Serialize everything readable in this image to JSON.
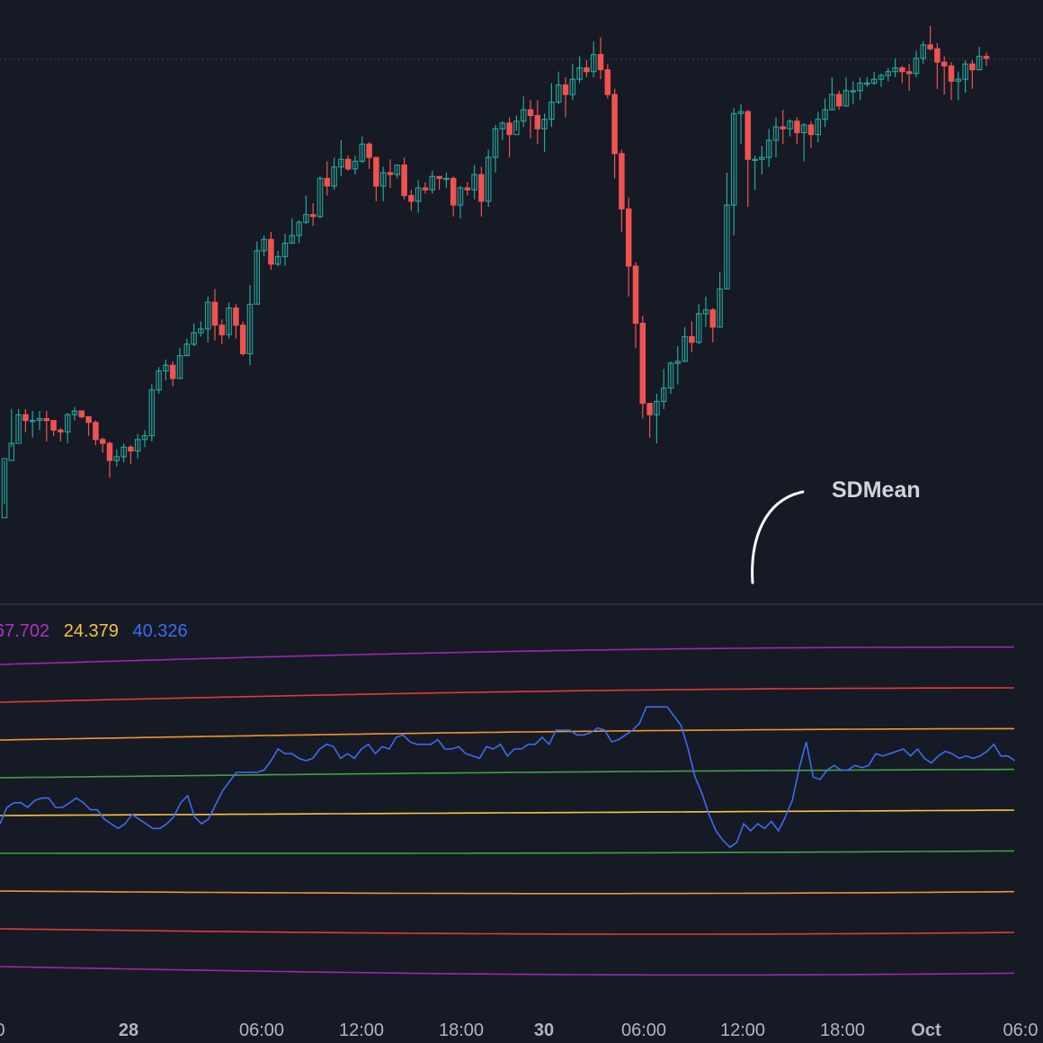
{
  "annotation": {
    "text": "SDMean"
  },
  "indicator_values": [
    {
      "text": "67.702",
      "color": "#b032c4"
    },
    {
      "text": "24.379",
      "color": "#f5c542"
    },
    {
      "text": "40.326",
      "color": "#3d6bf0"
    }
  ],
  "time_axis": {
    "labels": [
      "0",
      "28",
      "06:00",
      "12:00",
      "18:00",
      "30",
      "06:00",
      "12:00",
      "18:00",
      "Oct",
      "06:0"
    ],
    "bold": [
      false,
      true,
      false,
      false,
      false,
      true,
      false,
      false,
      false,
      true,
      false
    ]
  },
  "colors": {
    "background": "#161a25",
    "up": "#26a69a",
    "down": "#ef5350",
    "axis_text": "#b2b5be",
    "divider": "#2a2e39",
    "mean_line": "#3d6bf0",
    "band_1sd": "#43a047",
    "band_mid": "#f5c542",
    "band_2sd": "#f0962a",
    "band_3sd": "#e53935",
    "band_4sd": "#9c27b0"
  },
  "chart_data": [
    {
      "type": "candlestick",
      "title": "",
      "candles_ohlc": [
        [
          2,
          33,
          32,
          9
        ],
        [
          32,
          41,
          59,
          39
        ],
        [
          41,
          56,
          59,
          42
        ],
        [
          56,
          53,
          59,
          47
        ],
        [
          53,
          53,
          58,
          44
        ],
        [
          53,
          54,
          58,
          48
        ],
        [
          54,
          53,
          58,
          42
        ],
        [
          53,
          48,
          52,
          45
        ],
        [
          48,
          47,
          49,
          42
        ],
        [
          47,
          56,
          57,
          41
        ],
        [
          56,
          58,
          60,
          53
        ],
        [
          58,
          55,
          58,
          54
        ],
        [
          55,
          52,
          55,
          45
        ],
        [
          52,
          43,
          53,
          40
        ],
        [
          43,
          41,
          44,
          36
        ],
        [
          41,
          32,
          42,
          23
        ],
        [
          32,
          34,
          38,
          29
        ],
        [
          34,
          39,
          41,
          31
        ],
        [
          39,
          37,
          40,
          30
        ],
        [
          37,
          43,
          46,
          33
        ],
        [
          43,
          45,
          48,
          39
        ],
        [
          45,
          69,
          72,
          42
        ],
        [
          69,
          79,
          81,
          67
        ],
        [
          79,
          82,
          85,
          74
        ],
        [
          82,
          75,
          84,
          71
        ],
        [
          75,
          87,
          91,
          75
        ],
        [
          87,
          93,
          96,
          87
        ],
        [
          93,
          99,
          104,
          92
        ],
        [
          99,
          101,
          105,
          97
        ],
        [
          101,
          115,
          118,
          94
        ],
        [
          115,
          103,
          122,
          95
        ],
        [
          103,
          98,
          106,
          93
        ],
        [
          98,
          112,
          115,
          96
        ],
        [
          112,
          103,
          114,
          96
        ],
        [
          103,
          88,
          105,
          87
        ],
        [
          88,
          114,
          124,
          82
        ],
        [
          114,
          142,
          147,
          114
        ],
        [
          142,
          148,
          150,
          139
        ],
        [
          148,
          135,
          152,
          132
        ],
        [
          135,
          139,
          142,
          134
        ],
        [
          139,
          146,
          151,
          134
        ],
        [
          146,
          150,
          159,
          146
        ],
        [
          150,
          157,
          158,
          146
        ],
        [
          157,
          161,
          171,
          156
        ],
        [
          161,
          160,
          167,
          155
        ],
        [
          160,
          180,
          181,
          159
        ],
        [
          180,
          176,
          189,
          171
        ],
        [
          176,
          186,
          191,
          174
        ],
        [
          186,
          190,
          200,
          181
        ],
        [
          190,
          185,
          192,
          184
        ],
        [
          185,
          189,
          192,
          182
        ],
        [
          189,
          198,
          202,
          188
        ],
        [
          198,
          191,
          199,
          185
        ],
        [
          191,
          176,
          191,
          168
        ],
        [
          176,
          183,
          186,
          168
        ],
        [
          183,
          182,
          190,
          175
        ],
        [
          182,
          187,
          187,
          180
        ],
        [
          187,
          171,
          191,
          169
        ],
        [
          171,
          168,
          174,
          163
        ],
        [
          168,
          175,
          179,
          162
        ],
        [
          175,
          174,
          178,
          172
        ],
        [
          174,
          181,
          184,
          172
        ],
        [
          181,
          180,
          181,
          174
        ],
        [
          180,
          180,
          183,
          175
        ],
        [
          180,
          166,
          181,
          160
        ],
        [
          166,
          175,
          176,
          159
        ],
        [
          175,
          174,
          178,
          171
        ],
        [
          174,
          182,
          187,
          169
        ],
        [
          182,
          168,
          186,
          160
        ],
        [
          168,
          191,
          195,
          165
        ],
        [
          191,
          206,
          208,
          183
        ],
        [
          206,
          209,
          210,
          200
        ],
        [
          209,
          203,
          212,
          191
        ],
        [
          203,
          210,
          213,
          205
        ],
        [
          210,
          216,
          223,
          207
        ],
        [
          216,
          213,
          221,
          201
        ],
        [
          213,
          206,
          221,
          198
        ],
        [
          206,
          211,
          214,
          194
        ],
        [
          211,
          220,
          230,
          207
        ],
        [
          220,
          229,
          236,
          219
        ],
        [
          229,
          224,
          233,
          212
        ],
        [
          224,
          232,
          240,
          221
        ],
        [
          232,
          238,
          244,
          230
        ],
        [
          238,
          236,
          242,
          233
        ],
        [
          236,
          245,
          252,
          233
        ],
        [
          245,
          237,
          254,
          232
        ],
        [
          237,
          224,
          240,
          222
        ],
        [
          224,
          193,
          227,
          180
        ],
        [
          193,
          164,
          195,
          152
        ],
        [
          164,
          134,
          170,
          118
        ],
        [
          134,
          104,
          136,
          91
        ],
        [
          104,
          62,
          108,
          54
        ],
        [
          62,
          56,
          62,
          44
        ],
        [
          56,
          63,
          67,
          41
        ],
        [
          63,
          70,
          80,
          59
        ],
        [
          70,
          83,
          84,
          67
        ],
        [
          83,
          84,
          92,
          72
        ],
        [
          84,
          97,
          102,
          84
        ],
        [
          97,
          94,
          105,
          89
        ],
        [
          94,
          109,
          114,
          93
        ],
        [
          109,
          111,
          118,
          102
        ],
        [
          111,
          102,
          112,
          94
        ],
        [
          102,
          122,
          131,
          102
        ],
        [
          122,
          166,
          183,
          122
        ],
        [
          166,
          214,
          217,
          150
        ],
        [
          214,
          215,
          219,
          198
        ],
        [
          215,
          190,
          216,
          165
        ],
        [
          190,
          190,
          192,
          174
        ],
        [
          190,
          191,
          197,
          182
        ],
        [
          191,
          200,
          206,
          186
        ],
        [
          200,
          207,
          212,
          191
        ],
        [
          207,
          206,
          216,
          198
        ],
        [
          206,
          210,
          211,
          202
        ],
        [
          210,
          204,
          212,
          198
        ],
        [
          204,
          208,
          209,
          189
        ],
        [
          208,
          203,
          210,
          196
        ],
        [
          203,
          211,
          215,
          199
        ],
        [
          211,
          216,
          222,
          207
        ],
        [
          216,
          224,
          233,
          216
        ],
        [
          224,
          218,
          226,
          216
        ],
        [
          218,
          226,
          233,
          218
        ],
        [
          226,
          226,
          231,
          219
        ],
        [
          226,
          230,
          233,
          221
        ],
        [
          230,
          230,
          233,
          228
        ],
        [
          230,
          232,
          236,
          229
        ],
        [
          232,
          234,
          235,
          228
        ],
        [
          234,
          236,
          238,
          231
        ],
        [
          236,
          238,
          243,
          233
        ],
        [
          238,
          236,
          239,
          230
        ],
        [
          236,
          235,
          240,
          226
        ],
        [
          235,
          243,
          247,
          233
        ],
        [
          243,
          250,
          252,
          240
        ],
        [
          250,
          248,
          260,
          247
        ],
        [
          248,
          241,
          251,
          227
        ],
        [
          241,
          239,
          244,
          224
        ],
        [
          239,
          231,
          241,
          221
        ],
        [
          231,
          232,
          236,
          221
        ],
        [
          232,
          240,
          242,
          225
        ],
        [
          240,
          237,
          242,
          227
        ],
        [
          237,
          244,
          249,
          237
        ],
        [
          244,
          243,
          246,
          239
        ]
      ]
    },
    {
      "type": "line",
      "title": "",
      "levels_rel": [
        4,
        3,
        2,
        1,
        0,
        -1,
        -2,
        -3,
        -4
      ],
      "mean_series": [
        38,
        45,
        47,
        47,
        45,
        48,
        49,
        49,
        45,
        45,
        47,
        49,
        47,
        44,
        44,
        40,
        38,
        36,
        38,
        42,
        40,
        38,
        36,
        36,
        38,
        41,
        47,
        50,
        41,
        38,
        40,
        46,
        52,
        56,
        60,
        60,
        60,
        60,
        61,
        65,
        70,
        68,
        68,
        66,
        65,
        66,
        70,
        72,
        71,
        66,
        68,
        66,
        70,
        72,
        68,
        71,
        70,
        75,
        76,
        73,
        72,
        72,
        72,
        74,
        70,
        70,
        71,
        68,
        67,
        66,
        71,
        70,
        72,
        67,
        70,
        70,
        72,
        72,
        75,
        72,
        78,
        78,
        78,
        76,
        76,
        77,
        79,
        78,
        73,
        74,
        76,
        78,
        81,
        88,
        88,
        88,
        88,
        84,
        80,
        70,
        58,
        51,
        42,
        35,
        31,
        28,
        30,
        38,
        35,
        38,
        36,
        39,
        35,
        41,
        48,
        62,
        73,
        58,
        57,
        61,
        63,
        61,
        61,
        63,
        62,
        63,
        68,
        67,
        68,
        69,
        70,
        67,
        70,
        66,
        64,
        67,
        69,
        68,
        66,
        67,
        66,
        67,
        69,
        72,
        67,
        67,
        65
      ]
    }
  ]
}
